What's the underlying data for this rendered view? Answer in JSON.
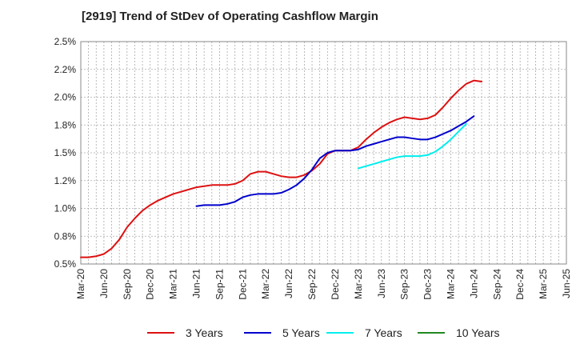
{
  "title": "[2919]  Trend of StDev of Operating Cashflow Margin",
  "chart_data": {
    "type": "line",
    "title": "[2919]  Trend of StDev of Operating Cashflow Margin",
    "x_ticks": [
      "Mar-20",
      "Jun-20",
      "Sep-20",
      "Dec-20",
      "Mar-21",
      "Jun-21",
      "Sep-21",
      "Dec-21",
      "Mar-22",
      "Jun-22",
      "Sep-22",
      "Dec-22",
      "Mar-23",
      "Jun-23",
      "Sep-23",
      "Dec-23",
      "Mar-24",
      "Jun-24",
      "Sep-24",
      "Dec-24",
      "Mar-25",
      "Jun-25"
    ],
    "y_ticks": [
      "0.5%",
      "0.8%",
      "1.0%",
      "1.2%",
      "1.5%",
      "1.8%",
      "2.0%",
      "2.2%",
      "2.5%"
    ],
    "ylim": [
      0.5,
      2.5
    ],
    "grid": true,
    "legend_position": "bottom",
    "series": [
      {
        "name": "3 Years",
        "color": "#dd1111",
        "start_index": 0,
        "values": [
          0.56,
          0.56,
          0.57,
          0.59,
          0.64,
          0.72,
          0.83,
          0.91,
          0.98,
          1.03,
          1.07,
          1.1,
          1.13,
          1.15,
          1.17,
          1.19,
          1.2,
          1.21,
          1.21,
          1.21,
          1.22,
          1.25,
          1.31,
          1.33,
          1.33,
          1.31,
          1.29,
          1.28,
          1.28,
          1.3,
          1.34,
          1.4,
          1.49,
          1.52,
          1.52,
          1.52,
          1.55,
          1.62,
          1.68,
          1.73,
          1.77,
          1.8,
          1.82,
          1.81,
          1.8,
          1.81,
          1.84,
          1.91,
          1.99,
          2.06,
          2.12,
          2.15,
          2.14
        ]
      },
      {
        "name": "5 Years",
        "color": "#0000cc",
        "start_index": 15,
        "values": [
          1.02,
          1.03,
          1.03,
          1.03,
          1.04,
          1.06,
          1.1,
          1.12,
          1.13,
          1.13,
          1.13,
          1.14,
          1.17,
          1.21,
          1.27,
          1.35,
          1.45,
          1.5,
          1.52,
          1.52,
          1.52,
          1.53,
          1.56,
          1.58,
          1.6,
          1.62,
          1.64,
          1.64,
          1.63,
          1.62,
          1.62,
          1.64,
          1.67,
          1.7,
          1.74,
          1.78,
          1.83
        ]
      },
      {
        "name": "7 Years",
        "color": "#00eeee",
        "start_index": 36,
        "values": [
          1.36,
          1.38,
          1.4,
          1.42,
          1.44,
          1.46,
          1.47,
          1.47,
          1.47,
          1.48,
          1.51,
          1.56,
          1.62,
          1.69,
          1.76
        ]
      },
      {
        "name": "10 Years",
        "color": "#228822",
        "start_index": 0,
        "values": []
      }
    ]
  }
}
